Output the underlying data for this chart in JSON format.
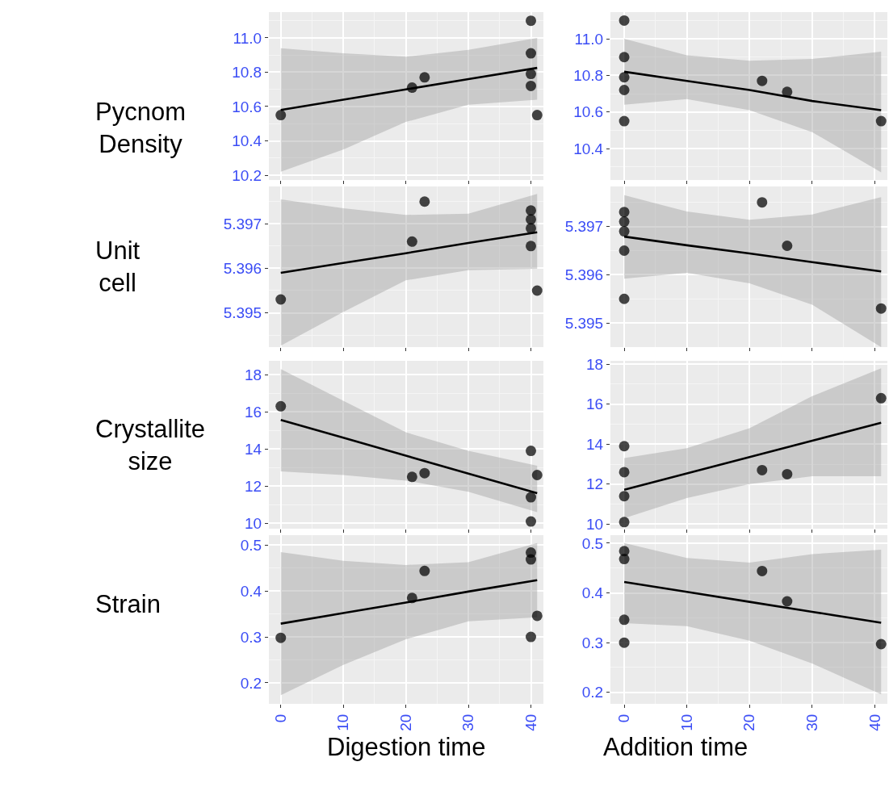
{
  "chart_data": [
    {
      "type": "scatter",
      "ylabel": "Pycnom Density",
      "xlim": [
        -1.9,
        42
      ],
      "xticks": [
        0,
        10,
        20,
        30,
        40
      ],
      "ylim": [
        10.172,
        11.15
      ],
      "yticks": [
        10.2,
        10.4,
        10.6,
        10.8,
        {
          "value": 11.0,
          "label": "11.0"
        }
      ],
      "grid": true,
      "tick_labels": "y",
      "series": [
        {
          "color": "#000000",
          "x": [
            0,
            21,
            23,
            40,
            40,
            40,
            40,
            41
          ],
          "values": [
            10.55,
            10.71,
            10.77,
            11.1,
            10.91,
            10.79,
            10.72,
            10.55
          ]
        },
        {
          "type": "line",
          "color": "#000000",
          "x": [
            0,
            10,
            20,
            30,
            41
          ],
          "values": [
            10.58,
            10.64,
            10.7,
            10.76,
            10.825
          ],
          "lower": [
            10.22,
            10.35,
            10.51,
            10.61,
            10.64
          ],
          "upper": [
            10.94,
            10.91,
            10.89,
            10.93,
            11.0
          ]
        }
      ]
    },
    {
      "type": "scatter",
      "xlim": [
        -2.2,
        42
      ],
      "xticks": [
        0,
        10,
        20,
        30,
        40
      ],
      "ylim": [
        10.228,
        11.146
      ],
      "yticks": [
        10.4,
        10.6,
        10.8,
        {
          "value": 11.0,
          "label": "11.0"
        }
      ],
      "grid": true,
      "tick_labels": "y",
      "series": [
        {
          "color": "#000000",
          "x": [
            0,
            0,
            0,
            0,
            0,
            22,
            26,
            41
          ],
          "values": [
            11.1,
            10.9,
            10.79,
            10.72,
            10.55,
            10.77,
            10.71,
            10.55
          ]
        },
        {
          "type": "line",
          "color": "#000000",
          "x": [
            0,
            10,
            20,
            30,
            41
          ],
          "values": [
            10.82,
            10.77,
            10.72,
            10.66,
            10.61
          ],
          "lower": [
            10.64,
            10.67,
            10.61,
            10.49,
            10.27
          ],
          "upper": [
            11.0,
            10.91,
            10.88,
            10.89,
            10.93
          ]
        }
      ]
    },
    {
      "type": "scatter",
      "ylabel": "Unit cell",
      "xlim": [
        -1.9,
        42
      ],
      "xticks": [
        0,
        10,
        20,
        30,
        40
      ],
      "ylim": [
        5.39423,
        5.39784
      ],
      "yticks": [
        5.395,
        5.396,
        5.397
      ],
      "grid": true,
      "tick_labels": "y",
      "series": [
        {
          "color": "#000000",
          "x": [
            0,
            21,
            23,
            40,
            40,
            40,
            40,
            41
          ],
          "values": [
            5.3953,
            5.3966,
            5.3975,
            5.3973,
            5.3971,
            5.3969,
            5.3965,
            5.3955
          ]
        },
        {
          "type": "line",
          "color": "#000000",
          "x": [
            0,
            10,
            20,
            30,
            41
          ],
          "values": [
            5.3959,
            5.39612,
            5.39634,
            5.39657,
            5.39681
          ],
          "lower": [
            5.39426,
            5.39502,
            5.39573,
            5.39596,
            5.39599
          ],
          "upper": [
            5.39755,
            5.39735,
            5.3972,
            5.39723,
            5.39767
          ]
        }
      ]
    },
    {
      "type": "scatter",
      "xlim": [
        -2.2,
        42
      ],
      "xticks": [
        0,
        10,
        20,
        30,
        40
      ],
      "ylim": [
        5.3945,
        5.39783
      ],
      "yticks": [
        5.395,
        5.396,
        5.397
      ],
      "grid": true,
      "tick_labels": "y",
      "series": [
        {
          "color": "#000000",
          "x": [
            0,
            0,
            0,
            0,
            0,
            22,
            26,
            41
          ],
          "values": [
            5.3973,
            5.3971,
            5.3969,
            5.3965,
            5.3955,
            5.3975,
            5.3966,
            5.3953
          ]
        },
        {
          "type": "line",
          "color": "#000000",
          "x": [
            0,
            10,
            20,
            30,
            41
          ],
          "values": [
            5.39679,
            5.39661,
            5.39644,
            5.39626,
            5.39607
          ],
          "lower": [
            5.39592,
            5.39604,
            5.39582,
            5.39538,
            5.3945
          ],
          "upper": [
            5.39765,
            5.39731,
            5.39714,
            5.39725,
            5.39761
          ]
        }
      ]
    },
    {
      "type": "scatter",
      "ylabel": "Crystallite size",
      "xlim": [
        -1.9,
        42
      ],
      "xticks": [
        0,
        10,
        20,
        30,
        40
      ],
      "ylim": [
        9.71,
        18.75
      ],
      "yticks": [
        10,
        12,
        14,
        16,
        18
      ],
      "grid": true,
      "tick_labels": "y",
      "series": [
        {
          "color": "#000000",
          "x": [
            0,
            21,
            23,
            40,
            40,
            40,
            41
          ],
          "values": [
            16.3,
            12.5,
            12.7,
            13.9,
            11.4,
            10.1,
            12.6
          ]
        },
        {
          "type": "line",
          "color": "#000000",
          "x": [
            0,
            10,
            20,
            30,
            41
          ],
          "values": [
            15.57,
            14.61,
            13.64,
            12.68,
            11.62
          ],
          "lower": [
            12.8,
            12.6,
            12.3,
            11.7,
            10.6
          ],
          "upper": [
            18.3,
            16.6,
            14.9,
            13.9,
            13.1
          ]
        }
      ]
    },
    {
      "type": "scatter",
      "xlim": [
        -2.2,
        42
      ],
      "xticks": [
        0,
        10,
        20,
        30,
        40
      ],
      "ylim": [
        9.77,
        18.17
      ],
      "yticks": [
        10,
        12,
        14,
        16,
        18
      ],
      "grid": true,
      "tick_labels": "y",
      "series": [
        {
          "color": "#000000",
          "x": [
            0,
            0,
            0,
            0,
            22,
            26,
            41
          ],
          "values": [
            13.9,
            12.6,
            11.4,
            10.1,
            12.7,
            12.5,
            16.3
          ]
        },
        {
          "type": "line",
          "color": "#000000",
          "x": [
            0,
            10,
            20,
            30,
            41
          ],
          "values": [
            11.72,
            12.54,
            13.35,
            14.17,
            15.07
          ],
          "lower": [
            10.3,
            11.3,
            12.0,
            12.4,
            12.4
          ],
          "upper": [
            13.3,
            13.8,
            14.8,
            16.4,
            17.8
          ]
        }
      ]
    },
    {
      "type": "scatter",
      "ylabel": "Strain",
      "xlabel": "Digestion time",
      "xlim": [
        -1.9,
        42
      ],
      "xticks": [
        0,
        10,
        20,
        30,
        40
      ],
      "ylim": [
        0.154,
        0.522
      ],
      "yticks": [
        0.2,
        0.3,
        0.4,
        0.5
      ],
      "grid": true,
      "series": [
        {
          "color": "#000000",
          "x": [
            0,
            21,
            23,
            40,
            40,
            40,
            41
          ],
          "values": [
            0.298,
            0.385,
            0.444,
            0.484,
            0.469,
            0.3,
            0.346
          ]
        },
        {
          "type": "line",
          "color": "#000000",
          "x": [
            0,
            10,
            20,
            30,
            41
          ],
          "values": [
            0.329,
            0.352,
            0.375,
            0.399,
            0.424
          ],
          "lower": [
            0.173,
            0.239,
            0.295,
            0.334,
            0.343
          ],
          "upper": [
            0.485,
            0.466,
            0.457,
            0.463,
            0.505
          ]
        }
      ]
    },
    {
      "type": "scatter",
      "xlabel": "Addition time",
      "xlim": [
        -2.2,
        42
      ],
      "xticks": [
        0,
        10,
        20,
        30,
        40
      ],
      "ylim": [
        0.177,
        0.516
      ],
      "yticks": [
        0.2,
        0.3,
        0.4,
        0.5
      ],
      "grid": true,
      "series": [
        {
          "color": "#000000",
          "x": [
            0,
            0,
            0,
            0,
            22,
            26,
            41
          ],
          "values": [
            0.484,
            0.468,
            0.346,
            0.3,
            0.444,
            0.383,
            0.297
          ]
        },
        {
          "type": "line",
          "color": "#000000",
          "x": [
            0,
            10,
            20,
            30,
            41
          ],
          "values": [
            0.422,
            0.402,
            0.382,
            0.362,
            0.34
          ],
          "lower": [
            0.339,
            0.333,
            0.304,
            0.258,
            0.196
          ],
          "upper": [
            0.5,
            0.47,
            0.461,
            0.478,
            0.487
          ]
        }
      ]
    }
  ]
}
